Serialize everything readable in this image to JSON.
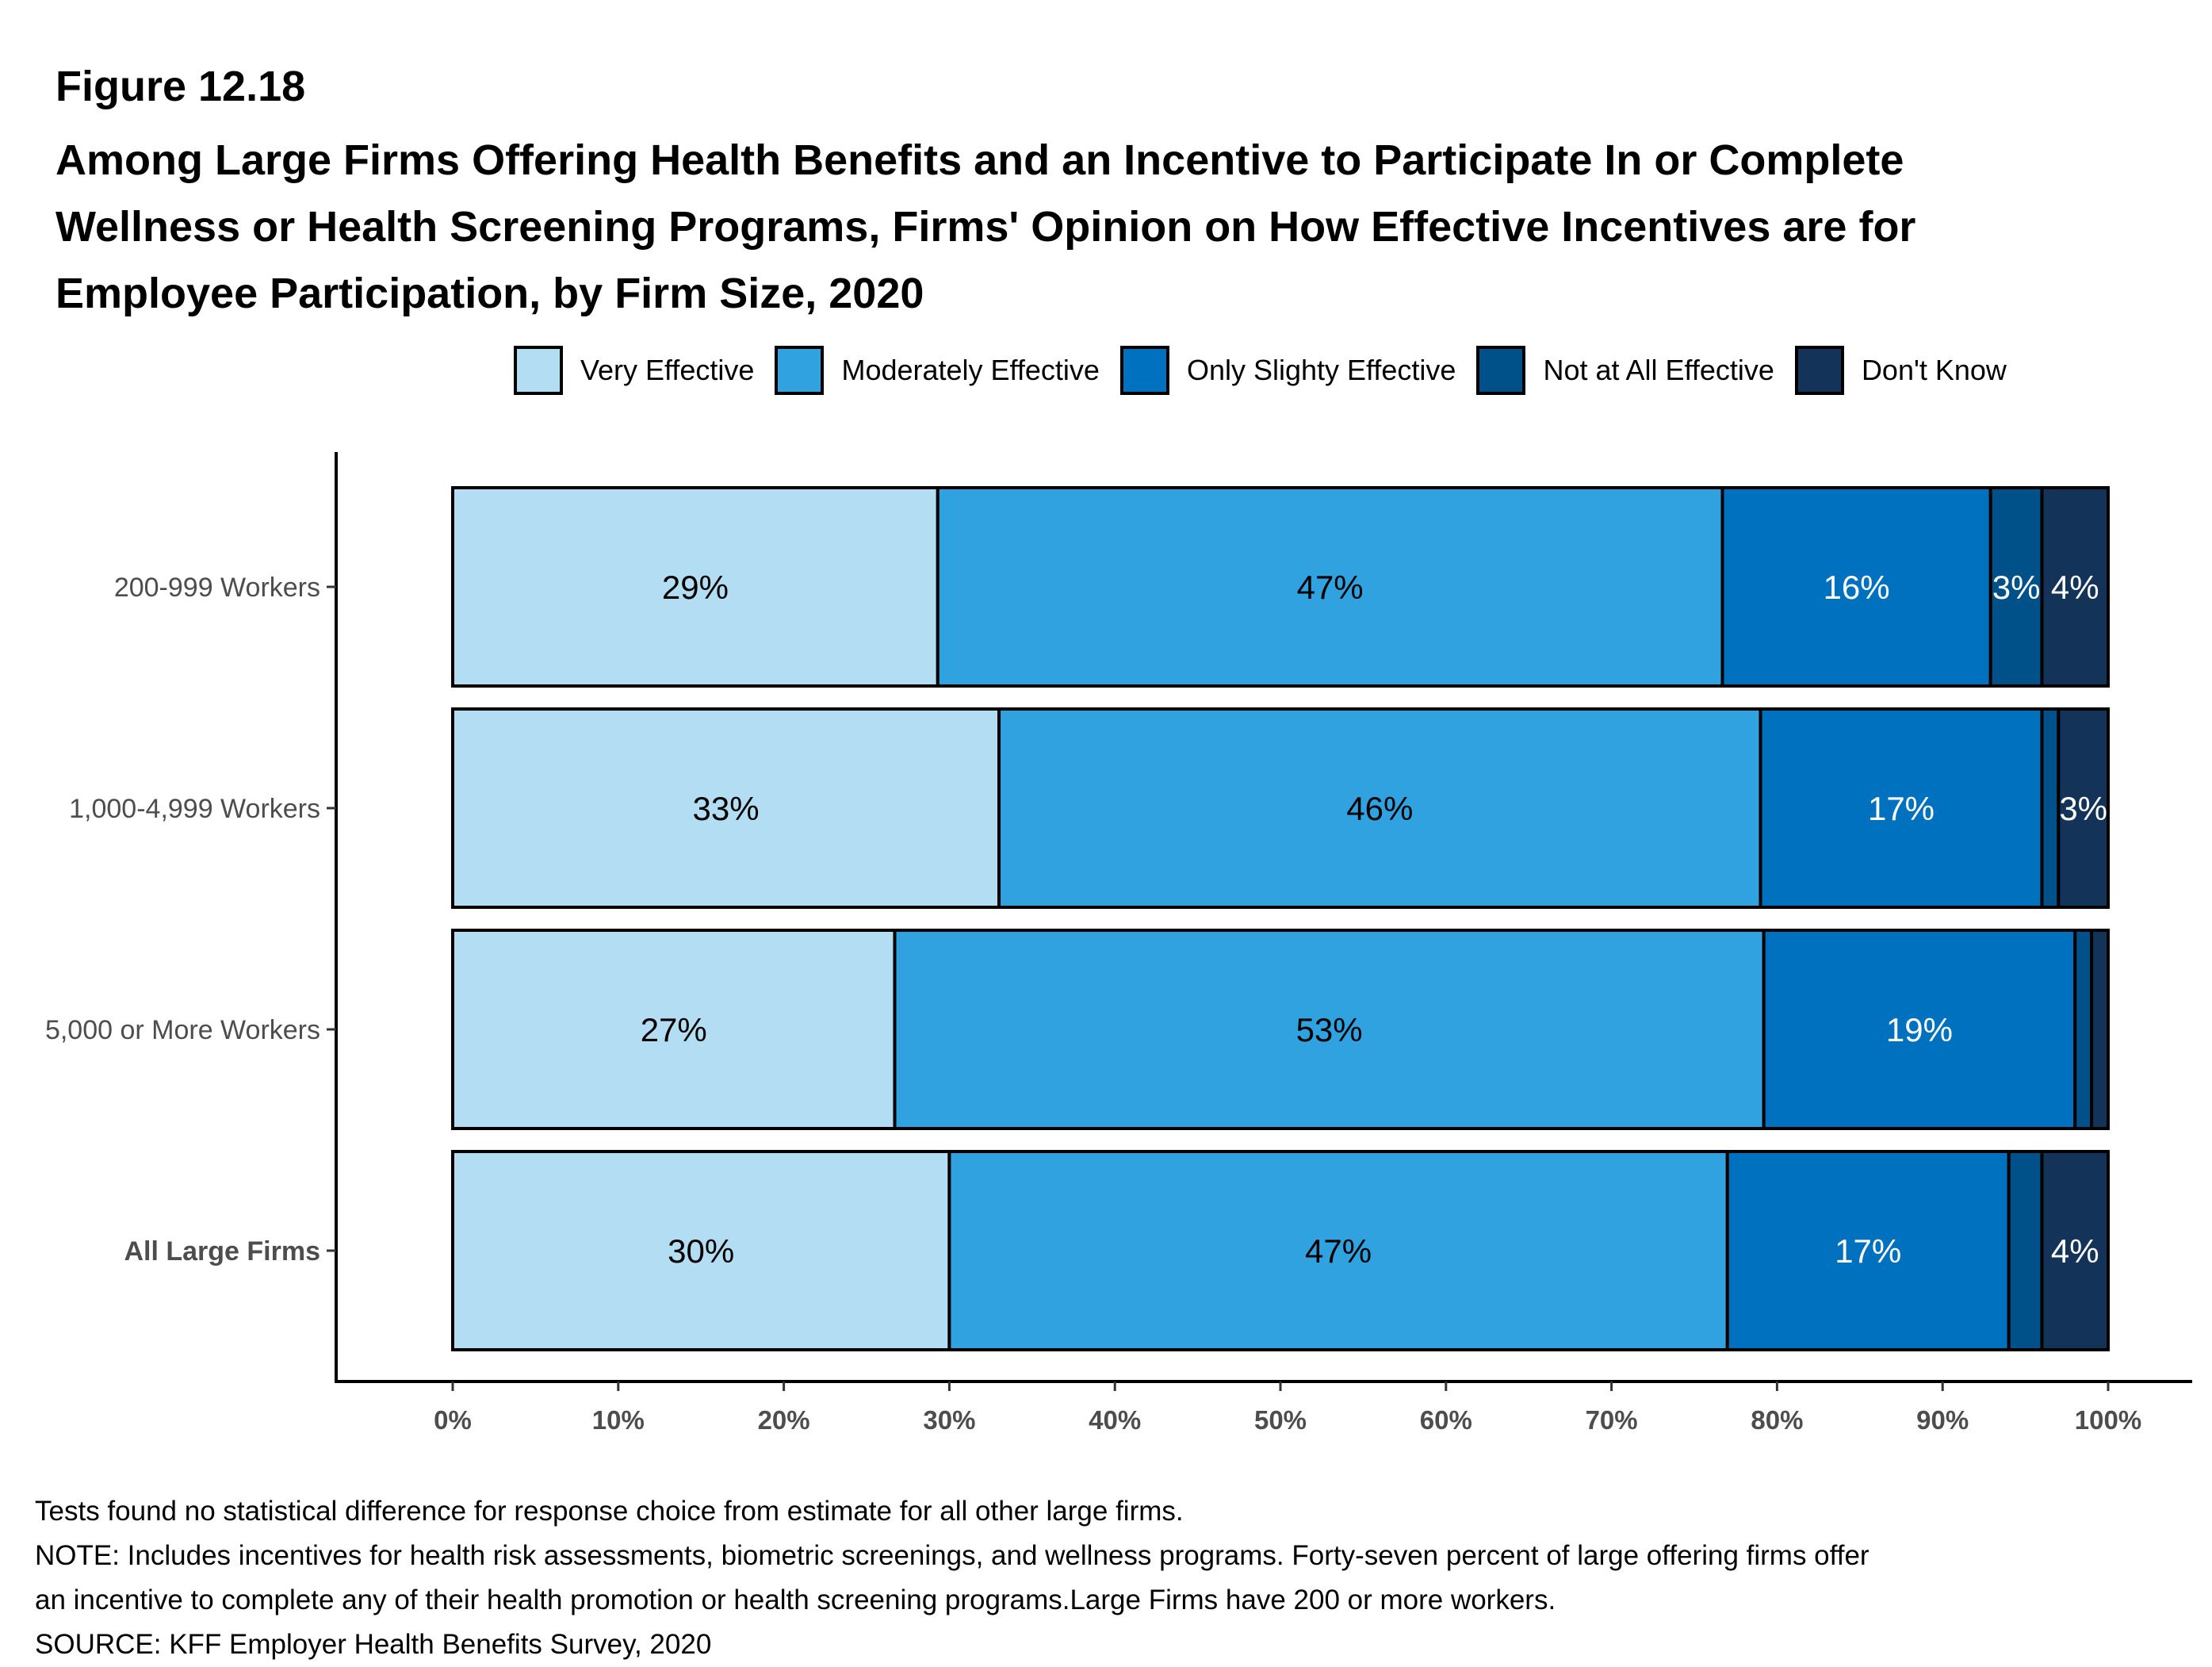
{
  "figure_label": "Figure 12.18",
  "title_lines": [
    "Among Large Firms Offering Health Benefits and an Incentive to Participate In or Complete",
    "Wellness or Health Screening Programs, Firms' Opinion on How Effective Incentives are for",
    "Employee Participation, by Firm Size, 2020"
  ],
  "colors": {
    "Very Effective": "#b2ddf2",
    "Moderately Effective": "#30a2e0",
    "Only Slighty Effective": "#0071bf",
    "Not at All Effective": "#005089",
    "Don't Know": "#143359"
  },
  "chart_data": {
    "type": "bar",
    "orientation": "horizontal",
    "stacked": true,
    "title": "Among Large Firms Offering Health Benefits and an Incentive to Participate In or Complete Wellness or Health Screening Programs, Firms' Opinion on How Effective Incentives are for Employee Participation, by Firm Size, 2020",
    "xlabel": "",
    "ylabel": "",
    "xlim": [
      0,
      100
    ],
    "x_ticks": [
      "0%",
      "10%",
      "20%",
      "30%",
      "40%",
      "50%",
      "60%",
      "70%",
      "80%",
      "90%",
      "100%"
    ],
    "grid": false,
    "legend_position": "top",
    "categories": [
      "200-999 Workers",
      "1,000-4,999 Workers",
      "5,000 or More Workers",
      "All Large Firms"
    ],
    "bold_categories": [
      "All Large Firms"
    ],
    "series": [
      {
        "name": "Very Effective",
        "values": [
          29.3,
          33,
          26.7,
          30
        ],
        "labels": [
          "29%",
          "33%",
          "27%",
          "30%"
        ],
        "label_color": "#000000"
      },
      {
        "name": "Moderately Effective",
        "values": [
          47.4,
          46,
          52.5,
          47
        ],
        "labels": [
          "47%",
          "46%",
          "53%",
          "47%"
        ],
        "label_color": "#000000"
      },
      {
        "name": "Only Slighty Effective",
        "values": [
          16.2,
          17,
          18.8,
          17
        ],
        "labels": [
          "16%",
          "17%",
          "19%",
          "17%"
        ],
        "label_color": "#ffffff"
      },
      {
        "name": "Not at All Effective",
        "values": [
          3.1,
          1,
          1,
          2
        ],
        "labels": [
          "3%",
          "",
          "",
          ""
        ],
        "label_color": "#ffffff"
      },
      {
        "name": "Don't Know",
        "values": [
          4,
          3,
          1,
          4
        ],
        "labels": [
          "4%",
          "3%",
          "",
          "4%"
        ],
        "label_color": "#ffffff"
      }
    ]
  },
  "footer": {
    "lines": [
      "Tests found no statistical difference for response choice from estimate for all other large firms.",
      "NOTE: Includes incentives for health risk assessments, biometric screenings, and wellness programs. Forty-seven percent of large offering firms offer",
      "an incentive to complete any of their health promotion or health screening programs.Large Firms have 200 or more workers.",
      "SOURCE: KFF Employer Health Benefits Survey, 2020"
    ]
  }
}
